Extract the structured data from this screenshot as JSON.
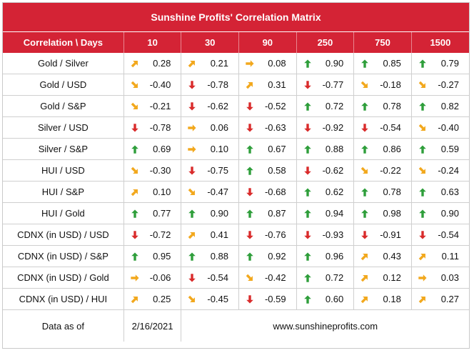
{
  "title": "Sunshine Profits' Correlation Matrix",
  "header": {
    "corner": "Correlation \\ Days",
    "days": [
      "10",
      "30",
      "90",
      "250",
      "750",
      "1500"
    ]
  },
  "colors": {
    "header_bg": "#d42335",
    "up": "#2e9e3a",
    "down": "#d92b2b",
    "diag": "#f2a81d"
  },
  "rows": [
    {
      "label": "Gold / Silver",
      "cells": [
        {
          "icon": "arrow-up-right-icon",
          "value": "0.28"
        },
        {
          "icon": "arrow-up-right-icon",
          "value": "0.21"
        },
        {
          "icon": "arrow-right-icon",
          "value": "0.08"
        },
        {
          "icon": "arrow-up-icon",
          "value": "0.90"
        },
        {
          "icon": "arrow-up-icon",
          "value": "0.85"
        },
        {
          "icon": "arrow-up-icon",
          "value": "0.79"
        }
      ]
    },
    {
      "label": "Gold / USD",
      "cells": [
        {
          "icon": "arrow-down-right-icon",
          "value": "-0.40"
        },
        {
          "icon": "arrow-down-icon",
          "value": "-0.78"
        },
        {
          "icon": "arrow-up-right-icon",
          "value": "0.31"
        },
        {
          "icon": "arrow-down-icon",
          "value": "-0.77"
        },
        {
          "icon": "arrow-down-right-icon",
          "value": "-0.18"
        },
        {
          "icon": "arrow-down-right-icon",
          "value": "-0.27"
        }
      ]
    },
    {
      "label": "Gold / S&P",
      "cells": [
        {
          "icon": "arrow-down-right-icon",
          "value": "-0.21"
        },
        {
          "icon": "arrow-down-icon",
          "value": "-0.62"
        },
        {
          "icon": "arrow-down-icon",
          "value": "-0.52"
        },
        {
          "icon": "arrow-up-icon",
          "value": "0.72"
        },
        {
          "icon": "arrow-up-icon",
          "value": "0.78"
        },
        {
          "icon": "arrow-up-icon",
          "value": "0.82"
        }
      ]
    },
    {
      "label": "Silver / USD",
      "cells": [
        {
          "icon": "arrow-down-icon",
          "value": "-0.78"
        },
        {
          "icon": "arrow-right-icon",
          "value": "0.06"
        },
        {
          "icon": "arrow-down-icon",
          "value": "-0.63"
        },
        {
          "icon": "arrow-down-icon",
          "value": "-0.92"
        },
        {
          "icon": "arrow-down-icon",
          "value": "-0.54"
        },
        {
          "icon": "arrow-down-right-icon",
          "value": "-0.40"
        }
      ]
    },
    {
      "label": "Silver / S&P",
      "cells": [
        {
          "icon": "arrow-up-icon",
          "value": "0.69"
        },
        {
          "icon": "arrow-right-icon",
          "value": "0.10"
        },
        {
          "icon": "arrow-up-icon",
          "value": "0.67"
        },
        {
          "icon": "arrow-up-icon",
          "value": "0.88"
        },
        {
          "icon": "arrow-up-icon",
          "value": "0.86"
        },
        {
          "icon": "arrow-up-icon",
          "value": "0.59"
        }
      ]
    },
    {
      "label": "HUI / USD",
      "cells": [
        {
          "icon": "arrow-down-right-icon",
          "value": "-0.30"
        },
        {
          "icon": "arrow-down-icon",
          "value": "-0.75"
        },
        {
          "icon": "arrow-up-icon",
          "value": "0.58"
        },
        {
          "icon": "arrow-down-icon",
          "value": "-0.62"
        },
        {
          "icon": "arrow-down-right-icon",
          "value": "-0.22"
        },
        {
          "icon": "arrow-down-right-icon",
          "value": "-0.24"
        }
      ]
    },
    {
      "label": "HUI / S&P",
      "cells": [
        {
          "icon": "arrow-up-right-icon",
          "value": "0.10"
        },
        {
          "icon": "arrow-down-right-icon",
          "value": "-0.47"
        },
        {
          "icon": "arrow-down-icon",
          "value": "-0.68"
        },
        {
          "icon": "arrow-up-icon",
          "value": "0.62"
        },
        {
          "icon": "arrow-up-icon",
          "value": "0.78"
        },
        {
          "icon": "arrow-up-icon",
          "value": "0.63"
        }
      ]
    },
    {
      "label": "HUI / Gold",
      "cells": [
        {
          "icon": "arrow-up-icon",
          "value": "0.77"
        },
        {
          "icon": "arrow-up-icon",
          "value": "0.90"
        },
        {
          "icon": "arrow-up-icon",
          "value": "0.87"
        },
        {
          "icon": "arrow-up-icon",
          "value": "0.94"
        },
        {
          "icon": "arrow-up-icon",
          "value": "0.98"
        },
        {
          "icon": "arrow-up-icon",
          "value": "0.90"
        }
      ]
    },
    {
      "label": "CDNX (in USD) / USD",
      "cells": [
        {
          "icon": "arrow-down-icon",
          "value": "-0.72"
        },
        {
          "icon": "arrow-up-right-icon",
          "value": "0.41"
        },
        {
          "icon": "arrow-down-icon",
          "value": "-0.76"
        },
        {
          "icon": "arrow-down-icon",
          "value": "-0.93"
        },
        {
          "icon": "arrow-down-icon",
          "value": "-0.91"
        },
        {
          "icon": "arrow-down-icon",
          "value": "-0.54"
        }
      ]
    },
    {
      "label": "CDNX (in USD) / S&P",
      "cells": [
        {
          "icon": "arrow-up-icon",
          "value": "0.95"
        },
        {
          "icon": "arrow-up-icon",
          "value": "0.88"
        },
        {
          "icon": "arrow-up-icon",
          "value": "0.92"
        },
        {
          "icon": "arrow-up-icon",
          "value": "0.96"
        },
        {
          "icon": "arrow-up-right-icon",
          "value": "0.43"
        },
        {
          "icon": "arrow-up-right-icon",
          "value": "0.11"
        }
      ]
    },
    {
      "label": "CDNX (in USD) / Gold",
      "cells": [
        {
          "icon": "arrow-right-icon",
          "value": "-0.06"
        },
        {
          "icon": "arrow-down-icon",
          "value": "-0.54"
        },
        {
          "icon": "arrow-down-right-icon",
          "value": "-0.42"
        },
        {
          "icon": "arrow-up-icon",
          "value": "0.72"
        },
        {
          "icon": "arrow-up-right-icon",
          "value": "0.12"
        },
        {
          "icon": "arrow-right-icon",
          "value": "0.03"
        }
      ]
    },
    {
      "label": "CDNX (in USD) / HUI",
      "cells": [
        {
          "icon": "arrow-up-right-icon",
          "value": "0.25"
        },
        {
          "icon": "arrow-down-right-icon",
          "value": "-0.45"
        },
        {
          "icon": "arrow-down-icon",
          "value": "-0.59"
        },
        {
          "icon": "arrow-up-icon",
          "value": "0.60"
        },
        {
          "icon": "arrow-up-right-icon",
          "value": "0.18"
        },
        {
          "icon": "arrow-up-right-icon",
          "value": "0.27"
        }
      ]
    }
  ],
  "footer": {
    "label": "Data as of",
    "date": "2/16/2021",
    "site": "www.sunshineprofits.com"
  }
}
